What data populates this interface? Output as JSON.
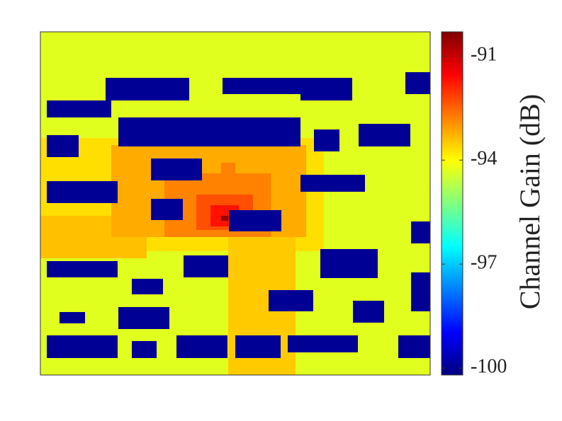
{
  "chart_data": {
    "type": "heatmap",
    "xlim": [
      0,
      110
    ],
    "ylim": [
      97,
      0
    ],
    "colormap": "jet",
    "regions": [
      {
        "x": [
          0,
          110
        ],
        "y": [
          0,
          97
        ],
        "value": -94.3
      },
      {
        "x": [
          0,
          80
        ],
        "y": [
          30,
          62
        ],
        "value": -93.7
      },
      {
        "x": [
          0,
          30
        ],
        "y": [
          52,
          64
        ],
        "value": -93.4
      },
      {
        "x": [
          53,
          72
        ],
        "y": [
          56,
          97
        ],
        "value": -93.5
      },
      {
        "x": [
          20,
          75
        ],
        "y": [
          32,
          58
        ],
        "value": -93.2
      },
      {
        "x": [
          35,
          65
        ],
        "y": [
          40,
          58
        ],
        "value": -92.8
      },
      {
        "x": [
          51,
          55
        ],
        "y": [
          37,
          42
        ],
        "value": -92.8
      },
      {
        "x": [
          44,
          60
        ],
        "y": [
          46,
          56
        ],
        "value": -92.3
      },
      {
        "x": [
          48,
          56
        ],
        "y": [
          49,
          55
        ],
        "value": -91.7
      },
      {
        "x": [
          51,
          53
        ],
        "y": [
          52,
          53.4
        ],
        "value": -90.5
      },
      {
        "x": [
          18.4,
          42
        ],
        "y": [
          13,
          19.4
        ],
        "value": -100
      },
      {
        "x": [
          51.4,
          73.4
        ],
        "y": [
          13,
          17.6
        ],
        "value": -100
      },
      {
        "x": [
          73.4,
          88
        ],
        "y": [
          13,
          19.4
        ],
        "value": -100
      },
      {
        "x": [
          103,
          110
        ],
        "y": [
          11.4,
          17.6
        ],
        "value": -100
      },
      {
        "x": [
          1.8,
          20
        ],
        "y": [
          19.4,
          24.2
        ],
        "value": -100
      },
      {
        "x": [
          22,
          73.4
        ],
        "y": [
          24.2,
          32.4
        ],
        "value": -100
      },
      {
        "x": [
          77.2,
          84.4
        ],
        "y": [
          27.6,
          33.8
        ],
        "value": -100
      },
      {
        "x": [
          89.8,
          104.4
        ],
        "y": [
          26,
          32.4
        ],
        "value": -100
      },
      {
        "x": [
          1.8,
          10.8
        ],
        "y": [
          29.2,
          35.4
        ],
        "value": -100
      },
      {
        "x": [
          31.2,
          45.6
        ],
        "y": [
          35.8,
          42
        ],
        "value": -100
      },
      {
        "x": [
          73.4,
          91.6
        ],
        "y": [
          40.4,
          45.2
        ],
        "value": -100
      },
      {
        "x": [
          1.8,
          21.8
        ],
        "y": [
          42.2,
          48.4
        ],
        "value": -100
      },
      {
        "x": [
          31.2,
          40.2
        ],
        "y": [
          47.2,
          53.2
        ],
        "value": -100
      },
      {
        "x": [
          53.2,
          68
        ],
        "y": [
          50.4,
          56.4
        ],
        "value": -100
      },
      {
        "x": [
          104.6,
          110
        ],
        "y": [
          53.6,
          59.8
        ],
        "value": -100
      },
      {
        "x": [
          1.8,
          21.8
        ],
        "y": [
          64.8,
          69.4
        ],
        "value": -100
      },
      {
        "x": [
          40.4,
          53
        ],
        "y": [
          63.2,
          69.4
        ],
        "value": -100
      },
      {
        "x": [
          79,
          95.2
        ],
        "y": [
          61.4,
          69.6
        ],
        "value": -100
      },
      {
        "x": [
          25.8,
          34.6
        ],
        "y": [
          69.8,
          74.2
        ],
        "value": -100
      },
      {
        "x": [
          104.6,
          110
        ],
        "y": [
          68,
          79
        ],
        "value": -100
      },
      {
        "x": [
          64.4,
          77
        ],
        "y": [
          73,
          79
        ],
        "value": -100
      },
      {
        "x": [
          5.4,
          12.6
        ],
        "y": [
          79.2,
          82.4
        ],
        "value": -100
      },
      {
        "x": [
          22,
          36.4
        ],
        "y": [
          77.8,
          84
        ],
        "value": -100
      },
      {
        "x": [
          88.2,
          97
        ],
        "y": [
          76,
          82.2
        ],
        "value": -100
      },
      {
        "x": [
          1.8,
          21.8
        ],
        "y": [
          85.8,
          92.2
        ],
        "value": -100
      },
      {
        "x": [
          25.8,
          32.8
        ],
        "y": [
          87.4,
          92.2
        ],
        "value": -100
      },
      {
        "x": [
          38.4,
          52.8
        ],
        "y": [
          85.8,
          92.2
        ],
        "value": -100
      },
      {
        "x": [
          55,
          67.8
        ],
        "y": [
          85.8,
          92.2
        ],
        "value": -100
      },
      {
        "x": [
          69.8,
          89.6
        ],
        "y": [
          85.8,
          90.6
        ],
        "value": -100
      },
      {
        "x": [
          101,
          110
        ],
        "y": [
          85.8,
          92.2
        ],
        "value": -100
      }
    ],
    "colorbar": {
      "lim": [
        -100.2,
        -90.3
      ],
      "ticks": [
        -91,
        -94,
        -97,
        -100
      ],
      "label": "Channel Gain (dB)"
    }
  }
}
